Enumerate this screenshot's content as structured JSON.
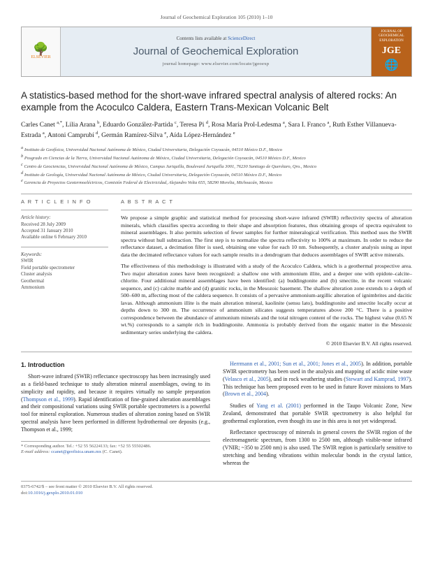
{
  "journal_header": {
    "citation": "Journal of Geochemical Exploration 105 (2010) 1–10",
    "contents_line_prefix": "Contents lists available at ",
    "contents_line_link": "ScienceDirect",
    "journal_name": "Journal of Geochemical Exploration",
    "homepage_prefix": "journal homepage: ",
    "homepage_url": "www.elsevier.com/locate/jgeoexp",
    "publisher_name": "ELSEVIER",
    "cover_label_top": "JOURNAL OF GEOCHEMICAL EXPLORATION",
    "cover_label_big": "JGE"
  },
  "article_title": "A statistics-based method for the short-wave infrared spectral analysis of altered rocks: An example from the Acoculco Caldera, Eastern Trans-Mexican Volcanic Belt",
  "authors_html": "Carles Canet <span class='sup'>a,*</span>, Lilia Arana <span class='sup'>b</span>, Eduardo González-Partida <span class='sup'>c</span>, Teresa Pi <span class='sup'>d</span>, Rosa María Prol-Ledesma <span class='sup'>a</span>, Sara I. Franco <span class='sup'>a</span>, Ruth Esther Villanueva-Estrada <span class='sup'>a</span>, Antoni Camprubí <span class='sup'>d</span>, Germán Ramírez-Silva <span class='sup'>e</span>, Aída López-Hernández <span class='sup'>e</span>",
  "affiliations": {
    "a": "Instituto de Geofísica, Universidad Nacional Autónoma de México, Ciudad Universitaria, Delegación Coyoacán, 04510 México D.F., Mexico",
    "b": "Posgrado en Ciencias de la Tierra, Universidad Nacional Autónoma de México, Ciudad Universitaria, Delegación Coyoacán, 04510 México D.F., Mexico",
    "c": "Centro de Geociencias, Universidad Nacional Autónoma de México, Campus Juriquilla, Boulevard Juriquilla 3001, 76230 Santiago de Querétaro, Qro., Mexico",
    "d": "Instituto de Geología, Universidad Nacional Autónoma de México, Ciudad Universitaria, Delegación Coyoacán, 04510 México D.F., Mexico",
    "e": "Gerencia de Proyectos Geotermoeléctricos, Comisión Federal de Electricidad, Alejandro Volta 655, 58290 Morelia, Michoacán, Mexico"
  },
  "article_info_heading": "A R T I C L E   I N F O",
  "abstract_heading": "A B S T R A C T",
  "history": {
    "label": "Article history:",
    "received": "Received 28 July 2009",
    "accepted": "Accepted 31 January 2010",
    "online": "Available online 6 February 2010"
  },
  "keywords": {
    "label": "Keywords:",
    "items": [
      "SWIR",
      "Field portable spectrometer",
      "Cluster analysis",
      "Geothermal",
      "Ammonium"
    ]
  },
  "abstract_paragraphs": [
    "We propose a simple graphic and statistical method for processing short-wave infrared (SWIR) reflectivity spectra of alteration minerals, which classifies spectra according to their shape and absorption features, thus obtaining groups of spectra equivalent to mineral assemblages. It also permits selection of fewer samples for further mineralogical verification. This method uses the SWIR spectra without hull subtraction. The first step is to normalize the spectra reflectivity to 100% at maximum. In order to reduce the reflectance dataset, a decimation filter is used, obtaining one value for each 10 nm. Subsequently, a cluster analysis using as input data the decimated reflectance values for each sample results in a dendrogram that deduces assemblages of SWIR active minerals.",
    "The effectiveness of this methodology is illustrated with a study of the Acoculco Caldera, which is a geothermal prospective area. Two major alteration zones have been recognized: a shallow one with ammonium illite, and a deeper one with epidote–calcite–chlorite. Four additional mineral assemblages have been identified: (a) buddingtonite and (b) smectite, in the recent volcanic sequence, and (c) calcite marble and (d) granitic rocks, in the Mesozoic basement. The shallow alteration zone extends to a depth of 500–600 m, affecting most of the caldera sequence. It consists of a pervasive ammonium-argillic alteration of ignimbrites and dacitic lavas. Although ammonium illite is the main alteration mineral, kaolinite (sensu lato), buddingtonite and smectite locally occur at depths down to 300 m. The occurrence of ammonium silicates suggests temperatures above 200 °C. There is a positive correspondence between the abundance of ammonium minerals and the total nitrogen content of the rocks. The highest value (0.65 N wt.%) corresponds to a sample rich in buddingtonite. Ammonia is probably derived from the organic matter in the Mesozoic sedimentary series underlying the caldera."
  ],
  "abstract_copyright": "© 2010 Elsevier B.V. All rights reserved.",
  "intro_heading": "1. Introduction",
  "left_col_paragraphs": [
    "Short-wave infrared (SWIR) reflectance spectroscopy has been increasingly used as a field-based technique to study alteration mineral assemblages, owing to its simplicity and rapidity, and because it requires virtually no sample preparation (Thompson et al., 1999). Rapid identification of fine-grained alteration assemblages and their compositional variations using SWIR portable spectrometers is a powerful tool for mineral exploration. Numerous studies of alteration zoning based on SWIR spectral analysis have been performed in different hydrothermal ore deposits (e.g., Thompson et al., 1999;"
  ],
  "right_col_paragraphs": [
    "Herrmann et al., 2001; Sun et al., 2001; Jones et al., 2005). In addition, portable SWIR spectrometry has been used in the analysis and mapping of acidic mine waste (Velasco et al., 2005), and in rock weathering studies (Stewart and Kamprad, 1997). This technique has been proposed even to be used in future Rover missions to Mars (Brown et al., 2004).",
    "Studies of Yang et al. (2001) performed in the Taupo Volcanic Zone, New Zealand, demonstrated that portable SWIR spectrometry is also helpful for geothermal exploration, even though its use in this area is not yet widespread.",
    "Reflectance spectroscopy of minerals in general covers the SWIR region of the electromagnetic spectrum, from 1300 to 2500 nm, although visible-near infrared (VNIR; ~350 to 2500 nm) is also used. The SWIR region is particularly sensitive to stretching and bending vibrations within molecular bonds in the crystal lattice, whereas the"
  ],
  "corresponding": {
    "line1": "* Corresponding author. Tel.: +52 55 56224133; fax: +52 55 55502486.",
    "line2_label": "E-mail address: ",
    "email": "ccanet@geofisica.unam.mx",
    "line2_suffix": " (C. Canet)."
  },
  "footer": {
    "issn_line": "0375-6742/$ – see front matter © 2010 Elsevier B.V. All rights reserved.",
    "doi_label": "doi:",
    "doi": "10.1016/j.gexplo.2010.01.010"
  },
  "colors": {
    "header_bg": "#e6edf3",
    "journal_title": "#4a5a6a",
    "cover_bg": "#b8621b",
    "elsevier_orange": "#e67817",
    "link": "#2a5db0"
  }
}
